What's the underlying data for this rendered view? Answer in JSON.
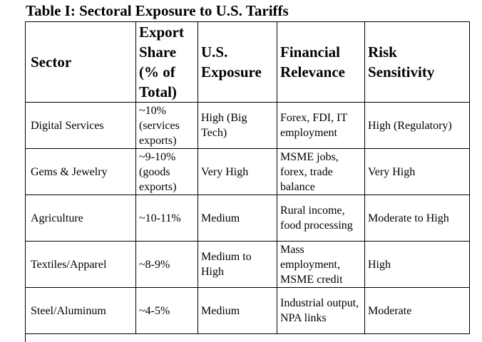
{
  "header": {
    "title": "Table I: Sectoral Exposure to U.S. Tariffs"
  },
  "table": {
    "columns": [
      "Sector",
      "Export Share (% of Total)",
      "U.S. Exposure",
      "Financial Relevance",
      "Risk Sensitivity"
    ],
    "rows": [
      [
        "Digital Services",
        "~10% (services exports)",
        "High (Big Tech)",
        "Forex, FDI, IT employment",
        "High (Regulatory)"
      ],
      [
        "Gems & Jewelry",
        "~9-10% (goods exports)",
        "Very High",
        "MSME jobs, forex, trade balance",
        "Very High"
      ],
      [
        "Agriculture",
        "~10-11%",
        "Medium",
        "Rural income, food processing",
        "Moderate to High"
      ],
      [
        "Textiles/Apparel",
        "~8-9%",
        "Medium to High",
        "Mass employment, MSME credit",
        "High"
      ],
      [
        "Steel/Aluminum",
        "~4-5%",
        "Medium",
        "Industrial output, NPA links",
        "Moderate"
      ]
    ]
  }
}
